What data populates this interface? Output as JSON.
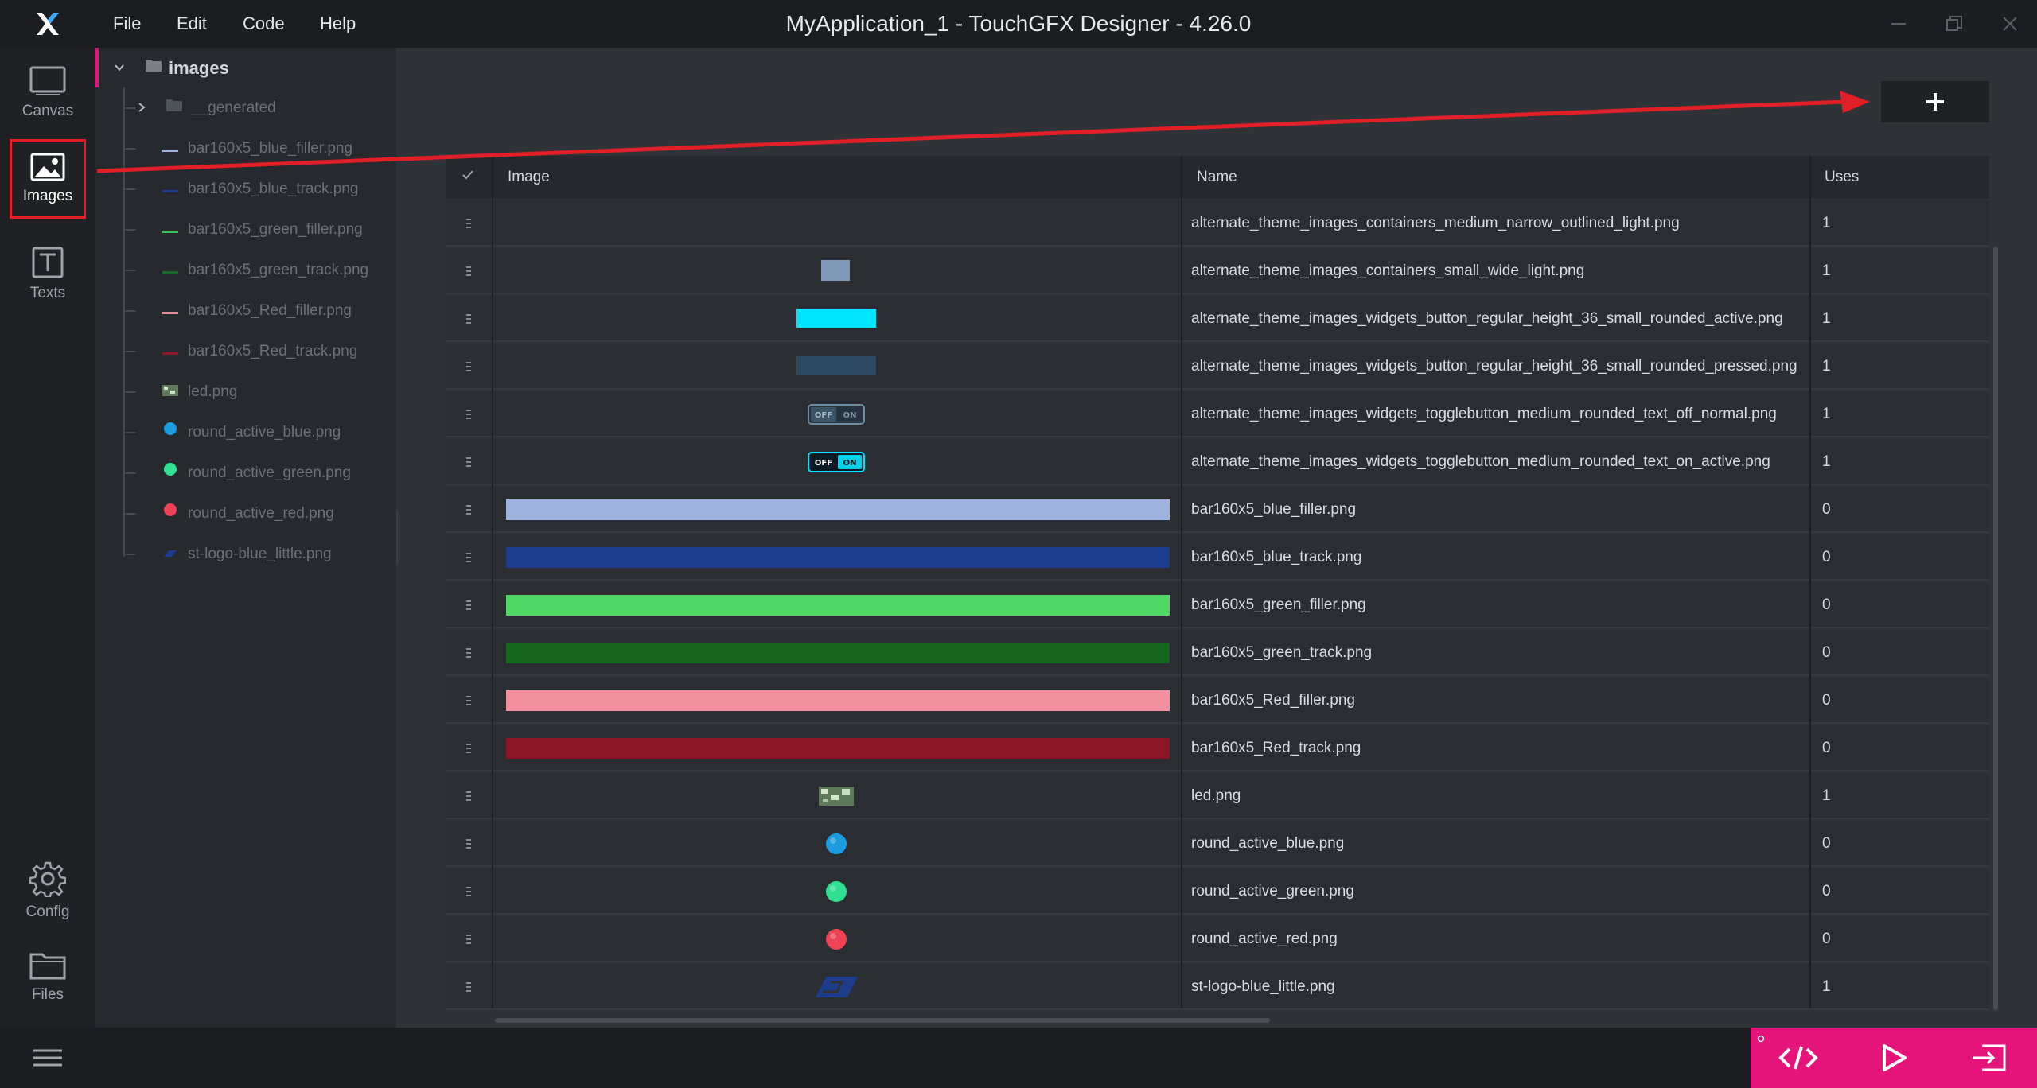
{
  "window": {
    "title": "MyApplication_1 - TouchGFX Designer - 4.26.0",
    "menu": [
      "File",
      "Edit",
      "Code",
      "Help"
    ]
  },
  "rail": {
    "items": [
      {
        "label": "Canvas",
        "icon": "canvas-icon"
      },
      {
        "label": "Images",
        "icon": "image-icon",
        "selected": true
      },
      {
        "label": "Texts",
        "icon": "text-icon"
      },
      {
        "label": "Config",
        "icon": "gear-icon"
      },
      {
        "label": "Files",
        "icon": "folder-icon"
      }
    ]
  },
  "tree": {
    "root": "images",
    "items": [
      {
        "label": "__generated",
        "kind": "folder"
      },
      {
        "label": "bar160x5_blue_filler.png",
        "swatch": "#9fb3de"
      },
      {
        "label": "bar160x5_blue_track.png",
        "swatch": "#1d3c8c"
      },
      {
        "label": "bar160x5_green_filler.png",
        "swatch": "#3fbd59"
      },
      {
        "label": "bar160x5_green_track.png",
        "swatch": "#1a6b2a"
      },
      {
        "label": "bar160x5_Red_filler.png",
        "swatch": "#e88a98"
      },
      {
        "label": "bar160x5_Red_track.png",
        "swatch": "#8a1a28"
      },
      {
        "label": "led.png",
        "swatch": "led"
      },
      {
        "label": "round_active_blue.png",
        "swatch": "#1b9be0"
      },
      {
        "label": "round_active_green.png",
        "swatch": "#2ee08f"
      },
      {
        "label": "round_active_red.png",
        "swatch": "#f04256"
      },
      {
        "label": "st-logo-blue_little.png",
        "swatch": "logo"
      }
    ]
  },
  "table": {
    "headers": {
      "image": "Image",
      "name": "Name",
      "uses": "Uses"
    },
    "rows": [
      {
        "name": "alternate_theme_images_containers_medium_narrow_outlined_light.png",
        "uses": "1",
        "preview": "none"
      },
      {
        "name": "alternate_theme_images_containers_small_wide_light.png",
        "uses": "1",
        "preview": "small-rect"
      },
      {
        "name": "alternate_theme_images_widgets_button_regular_height_36_small_rounded_active.png",
        "uses": "1",
        "preview": "cyan-button"
      },
      {
        "name": "alternate_theme_images_widgets_button_regular_height_36_small_rounded_pressed.png",
        "uses": "1",
        "preview": "dark-button"
      },
      {
        "name": "alternate_theme_images_widgets_togglebutton_medium_rounded_text_off_normal.png",
        "uses": "1",
        "preview": "toggle-off"
      },
      {
        "name": "alternate_theme_images_widgets_togglebutton_medium_rounded_text_on_active.png",
        "uses": "1",
        "preview": "toggle-on"
      },
      {
        "name": "bar160x5_blue_filler.png",
        "uses": "0",
        "preview": "bar",
        "color": "#9fb3de"
      },
      {
        "name": "bar160x5_blue_track.png",
        "uses": "0",
        "preview": "bar",
        "color": "#1d3c8c"
      },
      {
        "name": "bar160x5_green_filler.png",
        "uses": "0",
        "preview": "bar",
        "color": "#4fd866"
      },
      {
        "name": "bar160x5_green_track.png",
        "uses": "0",
        "preview": "bar",
        "color": "#17641f"
      },
      {
        "name": "bar160x5_Red_filler.png",
        "uses": "0",
        "preview": "bar",
        "color": "#f2909f"
      },
      {
        "name": "bar160x5_Red_track.png",
        "uses": "0",
        "preview": "bar",
        "color": "#8c1525"
      },
      {
        "name": "led.png",
        "uses": "1",
        "preview": "led"
      },
      {
        "name": "round_active_blue.png",
        "uses": "0",
        "preview": "dot",
        "color": "#1b9be0"
      },
      {
        "name": "round_active_green.png",
        "uses": "0",
        "preview": "dot",
        "color": "#2ee08f"
      },
      {
        "name": "round_active_red.png",
        "uses": "0",
        "preview": "dot",
        "color": "#f04256"
      },
      {
        "name": "st-logo-blue_little.png",
        "uses": "1",
        "preview": "st-logo"
      }
    ]
  },
  "toggle_text": {
    "off": "OFF",
    "on": "ON"
  },
  "colors": {
    "accent": "#e5147a",
    "highlight": "#e01f26"
  }
}
